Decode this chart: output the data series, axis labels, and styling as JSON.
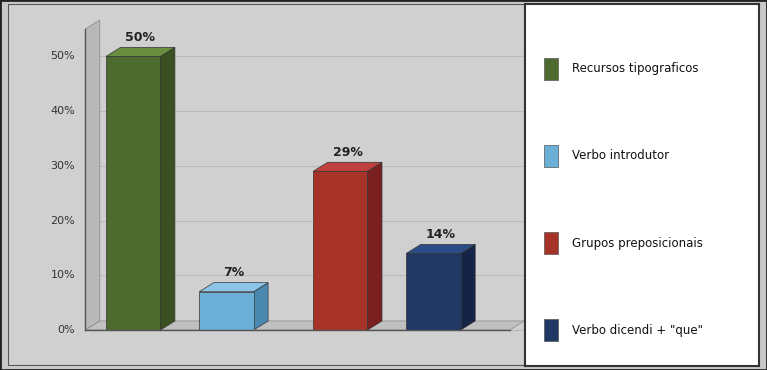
{
  "categories": [
    "Recursos tipograficos",
    "Verbo introdutor",
    "Grupos preposicionais",
    "Verbo dicendi"
  ],
  "values": [
    50,
    7,
    29,
    14
  ],
  "labels": [
    "50%",
    "7%",
    "29%",
    "14%"
  ],
  "bar_face_colors": [
    "#4e6b2f",
    "#6baed6",
    "#a63228",
    "#1f3864"
  ],
  "bar_top_colors": [
    "#6a8f40",
    "#8ec4e8",
    "#c04040",
    "#2a4d88"
  ],
  "bar_side_colors": [
    "#3a5020",
    "#4a8ab0",
    "#7a2020",
    "#152444"
  ],
  "bg_color": "#c8c8c8",
  "chart_bg": "#d4d4d4",
  "legend_labels": [
    "Recursos tipograficos",
    "Verbo introdutor",
    "Grupos preposicionais",
    "Verbo dicendi + \"que\""
  ],
  "legend_colors": [
    "#4e6b2f",
    "#6baed6",
    "#a63228",
    "#1f3864"
  ],
  "yticks": [
    0,
    10,
    20,
    30,
    40,
    50
  ],
  "yticklabels": [
    "0%",
    "10%",
    "20%",
    "30%",
    "40%",
    "50%"
  ],
  "figsize": [
    7.67,
    3.7
  ],
  "dpi": 100
}
